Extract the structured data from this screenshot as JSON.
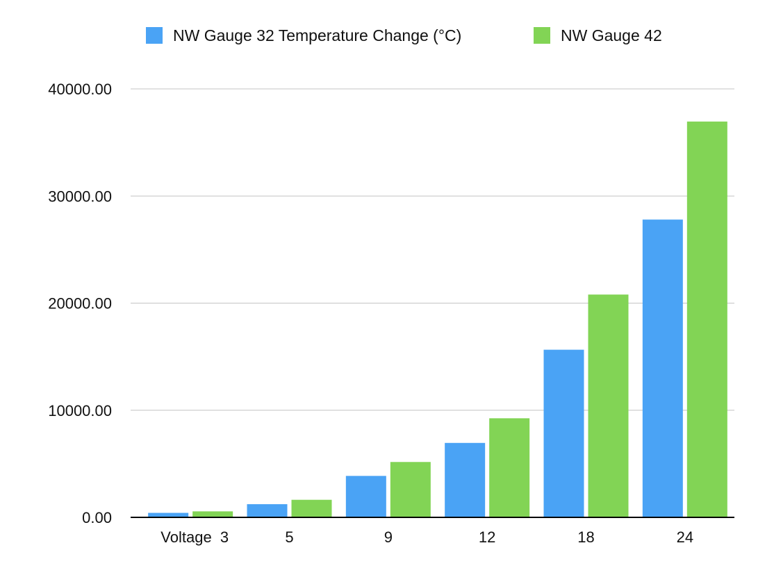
{
  "chart_data": {
    "type": "bar",
    "categories": [
      "Voltage  3",
      "5",
      "9",
      "12",
      "18",
      "24"
    ],
    "series": [
      {
        "name": "NW Gauge 32 Temperature Change (°C)",
        "color": "#4aa3f5",
        "values": [
          420,
          1230,
          3870,
          6950,
          15650,
          27800
        ]
      },
      {
        "name": "NW Gauge 42",
        "color": "#82d455",
        "values": [
          560,
          1640,
          5170,
          9250,
          20800,
          36950
        ]
      }
    ],
    "yticks": [
      "0.00",
      "10000.00",
      "20000.00",
      "30000.00",
      "40000.00"
    ],
    "ylim": [
      0,
      40000
    ],
    "grid": true,
    "legend_position": "top"
  }
}
